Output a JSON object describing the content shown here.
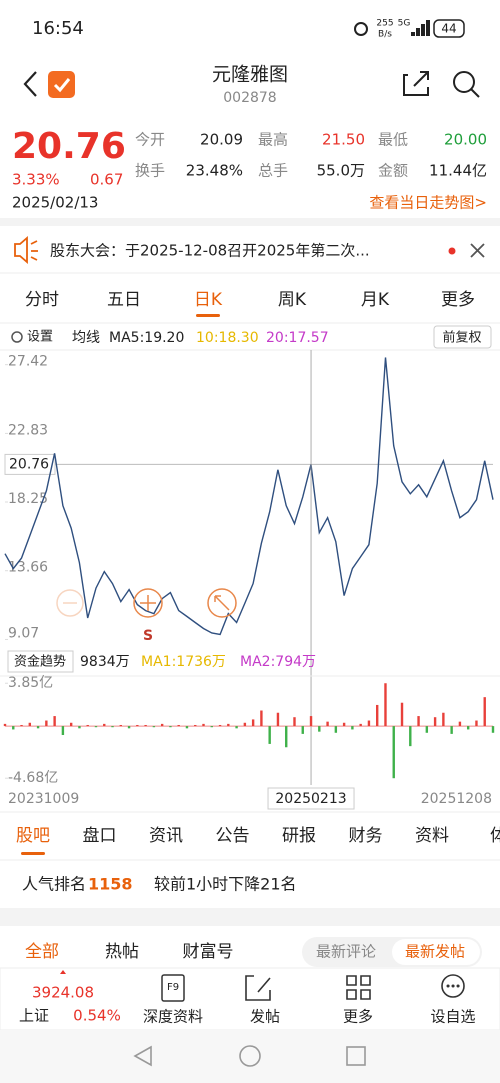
{
  "status_bar": {
    "time": "16:54",
    "speed": {
      "value": "255",
      "unit": "B/s"
    },
    "network": "5G",
    "battery": "44"
  },
  "header": {
    "name": "元隆雅图",
    "code": "002878"
  },
  "quote": {
    "price": "20.76",
    "change_pct": "3.33%",
    "change": "0.67",
    "date": "2025/02/13",
    "fields": [
      {
        "label": "今开",
        "value": "20.09"
      },
      {
        "label": "最高",
        "value": "21.50"
      },
      {
        "label": "最低",
        "value": "20.00"
      },
      {
        "label": "换手",
        "value": "23.48%"
      },
      {
        "label": "总手",
        "value": "55.0万"
      },
      {
        "label": "金额",
        "value": "11.44亿"
      }
    ],
    "trend_link": "查看当日走势图>"
  },
  "notice": "股东大会：于2025-12-08召开2025年第二次...",
  "period_tabs": [
    "分时",
    "五日",
    "日K",
    "周K",
    "月K",
    "更多"
  ],
  "chart_toolbar": {
    "settings": "设置",
    "ma_label": "均线",
    "ma5": "MA5:19.20",
    "ma10": "10:18.30",
    "ma20": "20:17.57",
    "adjust": "前复权"
  },
  "chart_data": [
    {
      "type": "line",
      "color": "#2f4f7f",
      "categories": [
        "20231009",
        null,
        null,
        null,
        null,
        null,
        null,
        null,
        null,
        null,
        null,
        null,
        null,
        null,
        null,
        null,
        null,
        null,
        null,
        null,
        null,
        null,
        null,
        null,
        null,
        null,
        null,
        null,
        null,
        null,
        null,
        null,
        null,
        null,
        null,
        null,
        null,
        "20250213",
        null,
        null,
        null,
        null,
        null,
        null,
        null,
        null,
        null,
        null,
        null,
        null,
        null,
        null,
        null,
        null,
        null,
        null,
        null,
        null,
        null,
        "20251208"
      ],
      "values": [
        14.8,
        13.8,
        14.5,
        16.0,
        17.5,
        19.0,
        21.5,
        18.0,
        16.5,
        14.2,
        10.5,
        12.5,
        13.6,
        12.8,
        11.6,
        12.4,
        11.4,
        11.0,
        10.8,
        11.8,
        12.2,
        11.0,
        10.6,
        10.2,
        9.8,
        9.5,
        9.4,
        10.8,
        10.2,
        11.5,
        12.8,
        15.5,
        17.6,
        20.4,
        18.0,
        16.8,
        18.6,
        20.76,
        16.2,
        17.2,
        15.6,
        12.0,
        13.8,
        14.6,
        15.4,
        19.5,
        27.9,
        22.0,
        19.6,
        18.8,
        19.4,
        18.6,
        19.8,
        21.0,
        19.0,
        17.2,
        17.6,
        18.4,
        21.0,
        18.4
      ],
      "ylim": [
        8.7,
        28.4
      ],
      "yticks": [
        9.07,
        13.66,
        18.25,
        22.83,
        27.42
      ],
      "ref_line": 20.76,
      "marker_label": "S"
    },
    {
      "type": "bar",
      "title": "资金趋势",
      "summary": "9834万",
      "ma1": "MA1:1736万",
      "ma2": "MA2:794万",
      "colors": {
        "up": "#e8403a",
        "down": "#3fb14a"
      },
      "values": [
        0.2,
        -0.3,
        0.1,
        0.3,
        -0.2,
        0.5,
        0.9,
        -0.8,
        0.3,
        -0.2,
        0.1,
        -0.1,
        0.2,
        -0.1,
        0.1,
        -0.2,
        0.1,
        0.1,
        -0.1,
        0.2,
        -0.1,
        0.1,
        -0.2,
        0.1,
        0.2,
        -0.1,
        0.1,
        0.2,
        -0.2,
        0.3,
        0.6,
        1.4,
        -1.6,
        1.2,
        -1.9,
        0.8,
        -0.7,
        0.9,
        -0.5,
        0.4,
        -0.6,
        0.3,
        -0.3,
        0.2,
        0.5,
        1.9,
        3.85,
        -4.68,
        2.1,
        -1.8,
        0.9,
        -0.6,
        0.8,
        1.2,
        -0.7,
        0.4,
        -0.3,
        0.5,
        2.6,
        -0.6
      ],
      "ylim": [
        -5.2,
        4.5
      ],
      "yticks": [
        {
          "value": -4.68,
          "label": "-4.68亿"
        },
        {
          "value": 3.85,
          "label": "3.85亿"
        }
      ]
    }
  ],
  "info_tabs": [
    "股吧",
    "盘口",
    "资讯",
    "公告",
    "研报",
    "财务",
    "资料",
    "体"
  ],
  "popularity": {
    "label": "人气排名",
    "rank": "1158",
    "note": "较前1小时下降21名"
  },
  "feed_tabs": [
    "全部",
    "热帖",
    "财富号"
  ],
  "sort_tabs": [
    "最新评论",
    "最新发帖"
  ],
  "bottom_bar": {
    "index_value": "3924.08",
    "index_name": "上证",
    "index_change": "0.54%",
    "f9": "F9",
    "items": [
      "深度资料",
      "发帖",
      "更多",
      "设自选"
    ]
  }
}
